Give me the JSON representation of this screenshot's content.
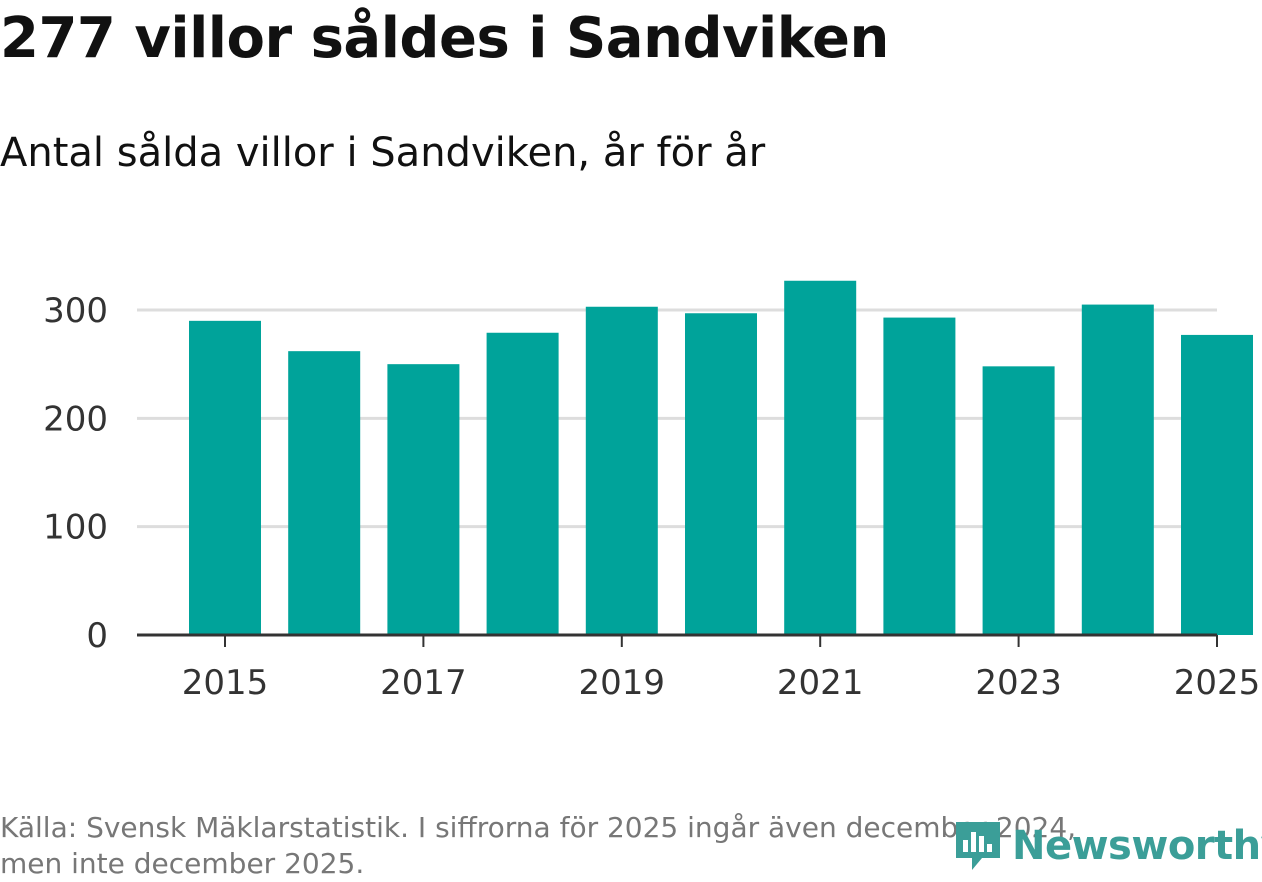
{
  "header": {
    "title": "277 villor såldes i Sandviken",
    "subtitle": "Antal sålda villor i Sandviken, år för år"
  },
  "footer": {
    "source_line1": "Källa: Svensk Mäklarstatistik. I siffrorna för 2025 ingår även december 2024,",
    "source_line2": "men inte december 2025.",
    "logo_text": "Newsworthy"
  },
  "colors": {
    "bar": "#00a39a",
    "grid": "#dddddd",
    "axis": "#333333",
    "logo": "#3b9e98"
  },
  "chart_data": {
    "type": "bar",
    "title": "Antal sålda villor i Sandviken, år för år",
    "xlabel": "",
    "ylabel": "",
    "categories": [
      "2015",
      "2016",
      "2017",
      "2018",
      "2019",
      "2020",
      "2021",
      "2022",
      "2023",
      "2024",
      "2025"
    ],
    "values": [
      290,
      262,
      250,
      279,
      303,
      297,
      327,
      293,
      248,
      305,
      277
    ],
    "ylim": [
      0,
      340
    ],
    "yticks": [
      0,
      100,
      200,
      300
    ],
    "xtick_labels": [
      "2015",
      "2017",
      "2019",
      "2021",
      "2023",
      "2025"
    ],
    "grid": true
  }
}
